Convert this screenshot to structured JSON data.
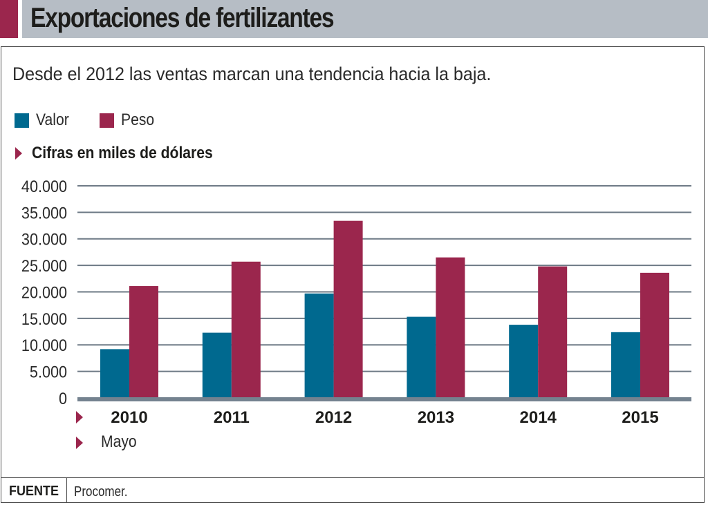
{
  "header": {
    "title": "Exportaciones de fertilizantes"
  },
  "subtitle": "Desde el 2012 las ventas marcan una tendencia hacia la baja.",
  "unit_note": "Cifras en miles de dólares",
  "period_note": "Mayo",
  "footer": {
    "label": "FUENTE",
    "source": "Procomer."
  },
  "colors": {
    "valor": "#00698f",
    "peso": "#9b264d",
    "accent": "#9b264d",
    "header_bg": "#b6bdc5",
    "grid": "#6e7a86",
    "baseline": "#74828f"
  },
  "chart_data": {
    "type": "bar",
    "title": "Exportaciones de fertilizantes",
    "subtitle": "Desde el 2012 las ventas marcan una tendencia hacia la baja.",
    "xlabel": "",
    "ylabel": "Cifras en miles de dólares",
    "categories": [
      "2010",
      "2011",
      "2012",
      "2013",
      "2014",
      "2015"
    ],
    "series": [
      {
        "name": "Valor",
        "color": "#00698f",
        "values": [
          9200,
          12300,
          19700,
          15300,
          13800,
          12400
        ]
      },
      {
        "name": "Peso",
        "color": "#9b264d",
        "values": [
          21100,
          25700,
          33400,
          26500,
          24800,
          23600
        ]
      }
    ],
    "ylim": [
      0,
      40000
    ],
    "yticks": [
      0,
      5000,
      10000,
      15000,
      20000,
      25000,
      30000,
      35000,
      40000
    ],
    "ytick_labels": [
      "0",
      "5.000",
      "10.000",
      "15.000",
      "20.000",
      "25.000",
      "30.000",
      "35.000",
      "40.000"
    ],
    "grid": true,
    "legend": "top-left",
    "annotations": [
      "2015: Mayo"
    ]
  }
}
